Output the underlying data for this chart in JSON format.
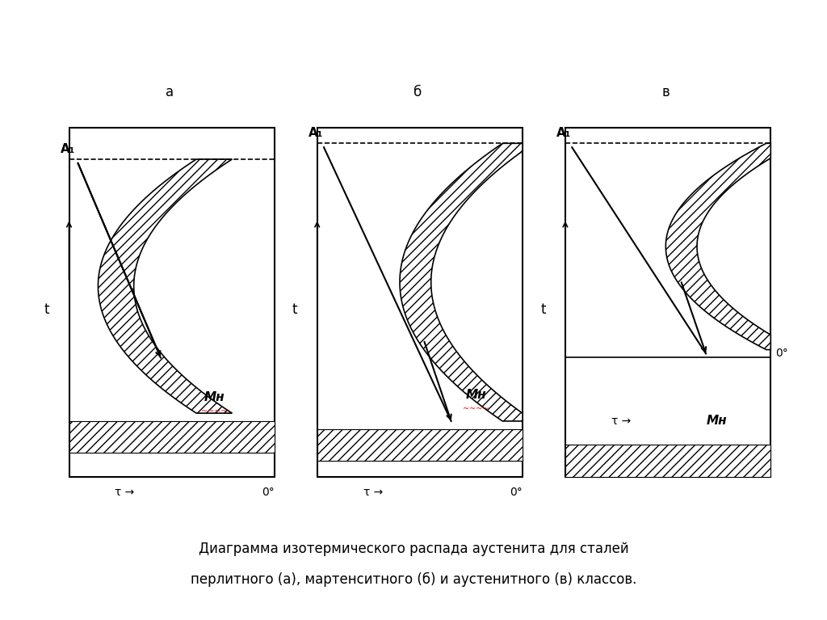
{
  "bg_color": "#ffffff",
  "title_label": "Диаграмма изотермического распада аустенита для сталей",
  "title2_label": "перлитного (а), мартенситного (б) и аустенитного (в) классов.",
  "subplot_labels": [
    "а",
    "б",
    "в"
  ],
  "A1_label": "A₁",
  "Mn_label": "Mн",
  "tau_label": "τ →",
  "t_label": "t",
  "O0_label": "0°"
}
